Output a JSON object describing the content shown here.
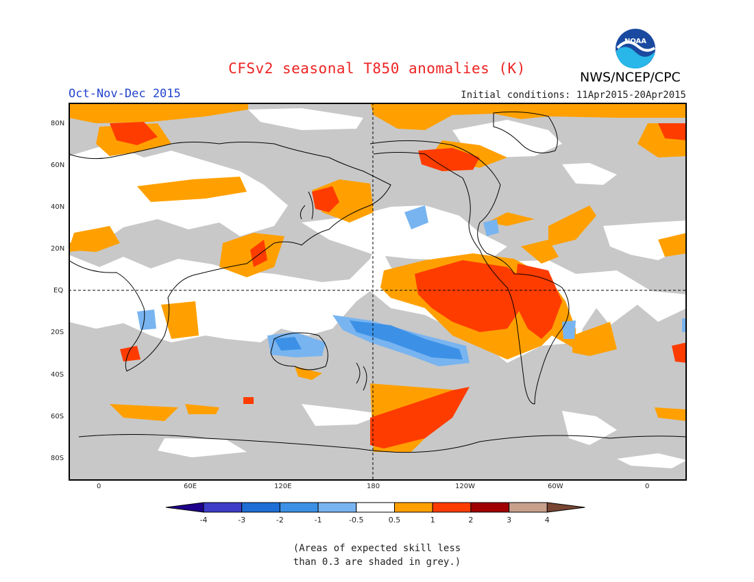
{
  "header": {
    "title": "CFSv2 seasonal T850 anomalies (K)",
    "agency": "NWS/NCEP/CPC",
    "season": "Oct-Nov-Dec 2015",
    "initial_conditions": "Initial conditions: 11Apr2015-20Apr2015",
    "logo_text": "NOAA"
  },
  "map": {
    "lat_labels": [
      "80N",
      "60N",
      "40N",
      "20N",
      "EQ",
      "20S",
      "40S",
      "60S",
      "80S"
    ],
    "lon_labels": [
      "0",
      "60E",
      "120E",
      "180",
      "120W",
      "60W",
      "0"
    ]
  },
  "colorbar": {
    "ticks": [
      "-4",
      "-3",
      "-2",
      "-1",
      "-0.5",
      "0.5",
      "1",
      "2",
      "3",
      "4"
    ],
    "colors": [
      "#1e008c",
      "#3d3dc8",
      "#1e6ed6",
      "#3c91e6",
      "#78b4f0",
      "#ffffff",
      "#ffa000",
      "#ff3c00",
      "#a00000",
      "#c8a08c",
      "#784632"
    ]
  },
  "note": {
    "line1": "(Areas of expected skill less",
    "line2": "than 0.3 are shaded in grey.)"
  },
  "legend_colors": {
    "grey_low_skill": "#c8c8c8",
    "orange": "#ffa000",
    "red": "#ff3c00",
    "blue": "#3c91e6",
    "light_blue": "#78b4f0"
  }
}
